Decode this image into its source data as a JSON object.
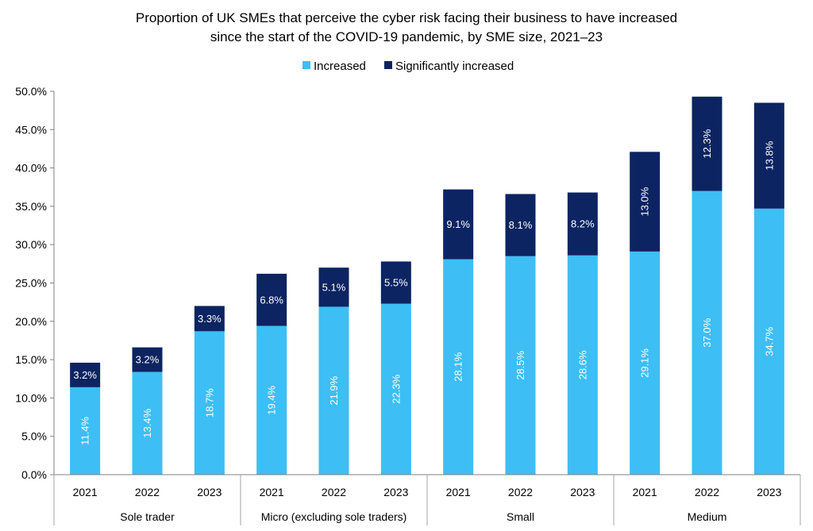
{
  "chart_data": {
    "type": "bar",
    "stacked": true,
    "title_lines": [
      "Proportion of UK SMEs that perceive the cyber risk facing their business to have increased",
      "since the start of the COVID-19 pandemic, by SME size, 2021–23"
    ],
    "legend": {
      "placement": "top-center"
    },
    "ylim": [
      0,
      50
    ],
    "yticks": [
      "0.0%",
      "5.0%",
      "10.0%",
      "15.0%",
      "20.0%",
      "25.0%",
      "30.0%",
      "35.0%",
      "40.0%",
      "45.0%",
      "50.0%"
    ],
    "grid": false,
    "groups": [
      "Sole trader",
      "Micro (excluding sole traders)",
      "Small",
      "Medium"
    ],
    "categories": [
      "2021",
      "2022",
      "2023",
      "2021",
      "2022",
      "2023",
      "2021",
      "2022",
      "2023",
      "2021",
      "2022",
      "2023"
    ],
    "series": [
      {
        "name": "Increased",
        "color": "#3dbef4",
        "values": [
          11.4,
          13.4,
          18.7,
          19.4,
          21.9,
          22.3,
          28.1,
          28.5,
          28.6,
          29.1,
          37.0,
          34.7
        ],
        "labels": [
          "11.4%",
          "13.4%",
          "18.7%",
          "19.4%",
          "21.9%",
          "22.3%",
          "28.1%",
          "28.5%",
          "28.6%",
          "29.1%",
          "37.0%",
          "34.7%"
        ]
      },
      {
        "name": "Significantly increased",
        "color": "#0c2461",
        "values": [
          3.2,
          3.2,
          3.3,
          6.8,
          5.1,
          5.5,
          9.1,
          8.1,
          8.2,
          13.0,
          12.3,
          13.8
        ],
        "labels": [
          "3.2%",
          "3.2%",
          "3.3%",
          "6.8%",
          "5.1%",
          "5.5%",
          "9.1%",
          "8.1%",
          "8.2%",
          "13.0%",
          "12.3%",
          "13.8%"
        ]
      }
    ]
  }
}
